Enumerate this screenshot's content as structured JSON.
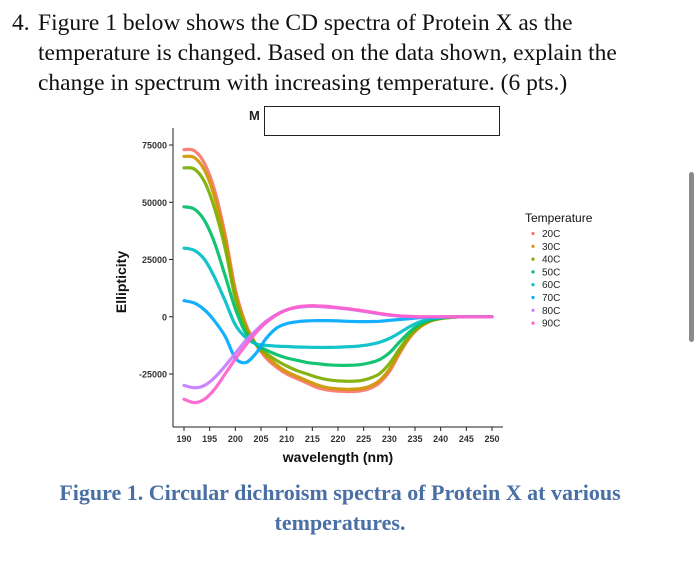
{
  "question": {
    "number": "4.",
    "line1": "Figure 1 below shows the CD spectra of Protein X as the",
    "line2": "temperature is changed. Based on the data shown, explain the",
    "line3": "change in spectrum with increasing temperature. (6 pts.)"
  },
  "caption": {
    "line1": "Figure 1. Circular dichroism spectra of Protein X at various",
    "line2": "temperatures."
  },
  "chart_data": {
    "type": "line",
    "title": "M",
    "xlabel": "wavelength (nm)",
    "ylabel": "Ellipticity",
    "xlim": [
      188,
      252
    ],
    "ylim": [
      -43000,
      80000
    ],
    "xticks": [
      190,
      195,
      200,
      205,
      210,
      215,
      220,
      225,
      230,
      235,
      240,
      245,
      250
    ],
    "yticks": [
      75000,
      50000,
      25000,
      0,
      -25000
    ],
    "ytick_labels": [
      "75000",
      "50000",
      "25000",
      "0",
      "-25000"
    ],
    "legend": {
      "title": "Temperature",
      "placement": "right"
    },
    "x": [
      190,
      192,
      194,
      196,
      198,
      200,
      202,
      204,
      206,
      208,
      210,
      212,
      214,
      216,
      218,
      220,
      222,
      224,
      226,
      228,
      230,
      232,
      234,
      236,
      238,
      240,
      242,
      244,
      246,
      248,
      250
    ],
    "series": [
      {
        "name": "20C",
        "color": "#f8766d",
        "values": [
          73000,
          72500,
          67000,
          55000,
          36000,
          12000,
          -3000,
          -12000,
          -18000,
          -22000,
          -25000,
          -27000,
          -29000,
          -31000,
          -32000,
          -32500,
          -32700,
          -32500,
          -31500,
          -29000,
          -24000,
          -16000,
          -9000,
          -4500,
          -2000,
          -800,
          -300,
          0,
          0,
          0,
          0
        ]
      },
      {
        "name": "30C",
        "color": "#cd9600",
        "values": [
          70000,
          69500,
          64000,
          52000,
          34000,
          10500,
          -3800,
          -12000,
          -17000,
          -21000,
          -24000,
          -26000,
          -28000,
          -29800,
          -31000,
          -31500,
          -31700,
          -31500,
          -30500,
          -28000,
          -23000,
          -15500,
          -8700,
          -4300,
          -1900,
          -750,
          -280,
          0,
          0,
          0,
          0
        ]
      },
      {
        "name": "40C",
        "color": "#7cae00",
        "values": [
          65000,
          64500,
          59000,
          47000,
          30000,
          8000,
          -5000,
          -12000,
          -16000,
          -19000,
          -21500,
          -23500,
          -25000,
          -26500,
          -27500,
          -28000,
          -28200,
          -28000,
          -27000,
          -25000,
          -20500,
          -14000,
          -8000,
          -4000,
          -1700,
          -700,
          -250,
          0,
          0,
          0,
          0
        ]
      },
      {
        "name": "50C",
        "color": "#00be67",
        "values": [
          48000,
          47000,
          42000,
          32000,
          18000,
          3500,
          -7000,
          -12000,
          -14500,
          -16500,
          -18000,
          -19000,
          -20000,
          -20500,
          -21000,
          -21200,
          -21200,
          -21000,
          -20200,
          -18800,
          -15800,
          -11000,
          -6500,
          -3200,
          -1400,
          -550,
          -200,
          0,
          0,
          0,
          0
        ]
      },
      {
        "name": "60C",
        "color": "#00bfc4",
        "values": [
          30000,
          29000,
          25000,
          17000,
          7000,
          -3500,
          -9000,
          -11800,
          -12500,
          -12800,
          -13000,
          -13200,
          -13300,
          -13400,
          -13400,
          -13300,
          -13100,
          -12800,
          -12200,
          -11200,
          -9500,
          -7000,
          -4300,
          -2200,
          -900,
          -350,
          -100,
          0,
          0,
          0,
          0
        ]
      },
      {
        "name": "70C",
        "color": "#00a9ff",
        "values": [
          7000,
          6000,
          3000,
          -2000,
          -8500,
          -18000,
          -20000,
          -16000,
          -9500,
          -5000,
          -3000,
          -2200,
          -1800,
          -1700,
          -1700,
          -1800,
          -2000,
          -2100,
          -2100,
          -2000,
          -1600,
          -1200,
          -800,
          -400,
          -200,
          -100,
          0,
          0,
          0,
          0,
          0
        ]
      },
      {
        "name": "80C",
        "color": "#c77cff",
        "values": [
          -30000,
          -31000,
          -30000,
          -26500,
          -21500,
          -16000,
          -10500,
          -6000,
          -2000,
          1000,
          3000,
          4000,
          4500,
          4500,
          4200,
          3800,
          3300,
          2700,
          2000,
          1300,
          700,
          300,
          100,
          0,
          0,
          0,
          0,
          0,
          0,
          0,
          0
        ]
      },
      {
        "name": "90C",
        "color": "#ff61cc",
        "values": [
          -36000,
          -37500,
          -36000,
          -31500,
          -25000,
          -18500,
          -12500,
          -7000,
          -2500,
          700,
          3000,
          4300,
          4800,
          4800,
          4500,
          4000,
          3500,
          2900,
          2200,
          1500,
          900,
          400,
          150,
          0,
          0,
          0,
          0,
          0,
          0,
          0,
          0
        ]
      }
    ]
  }
}
